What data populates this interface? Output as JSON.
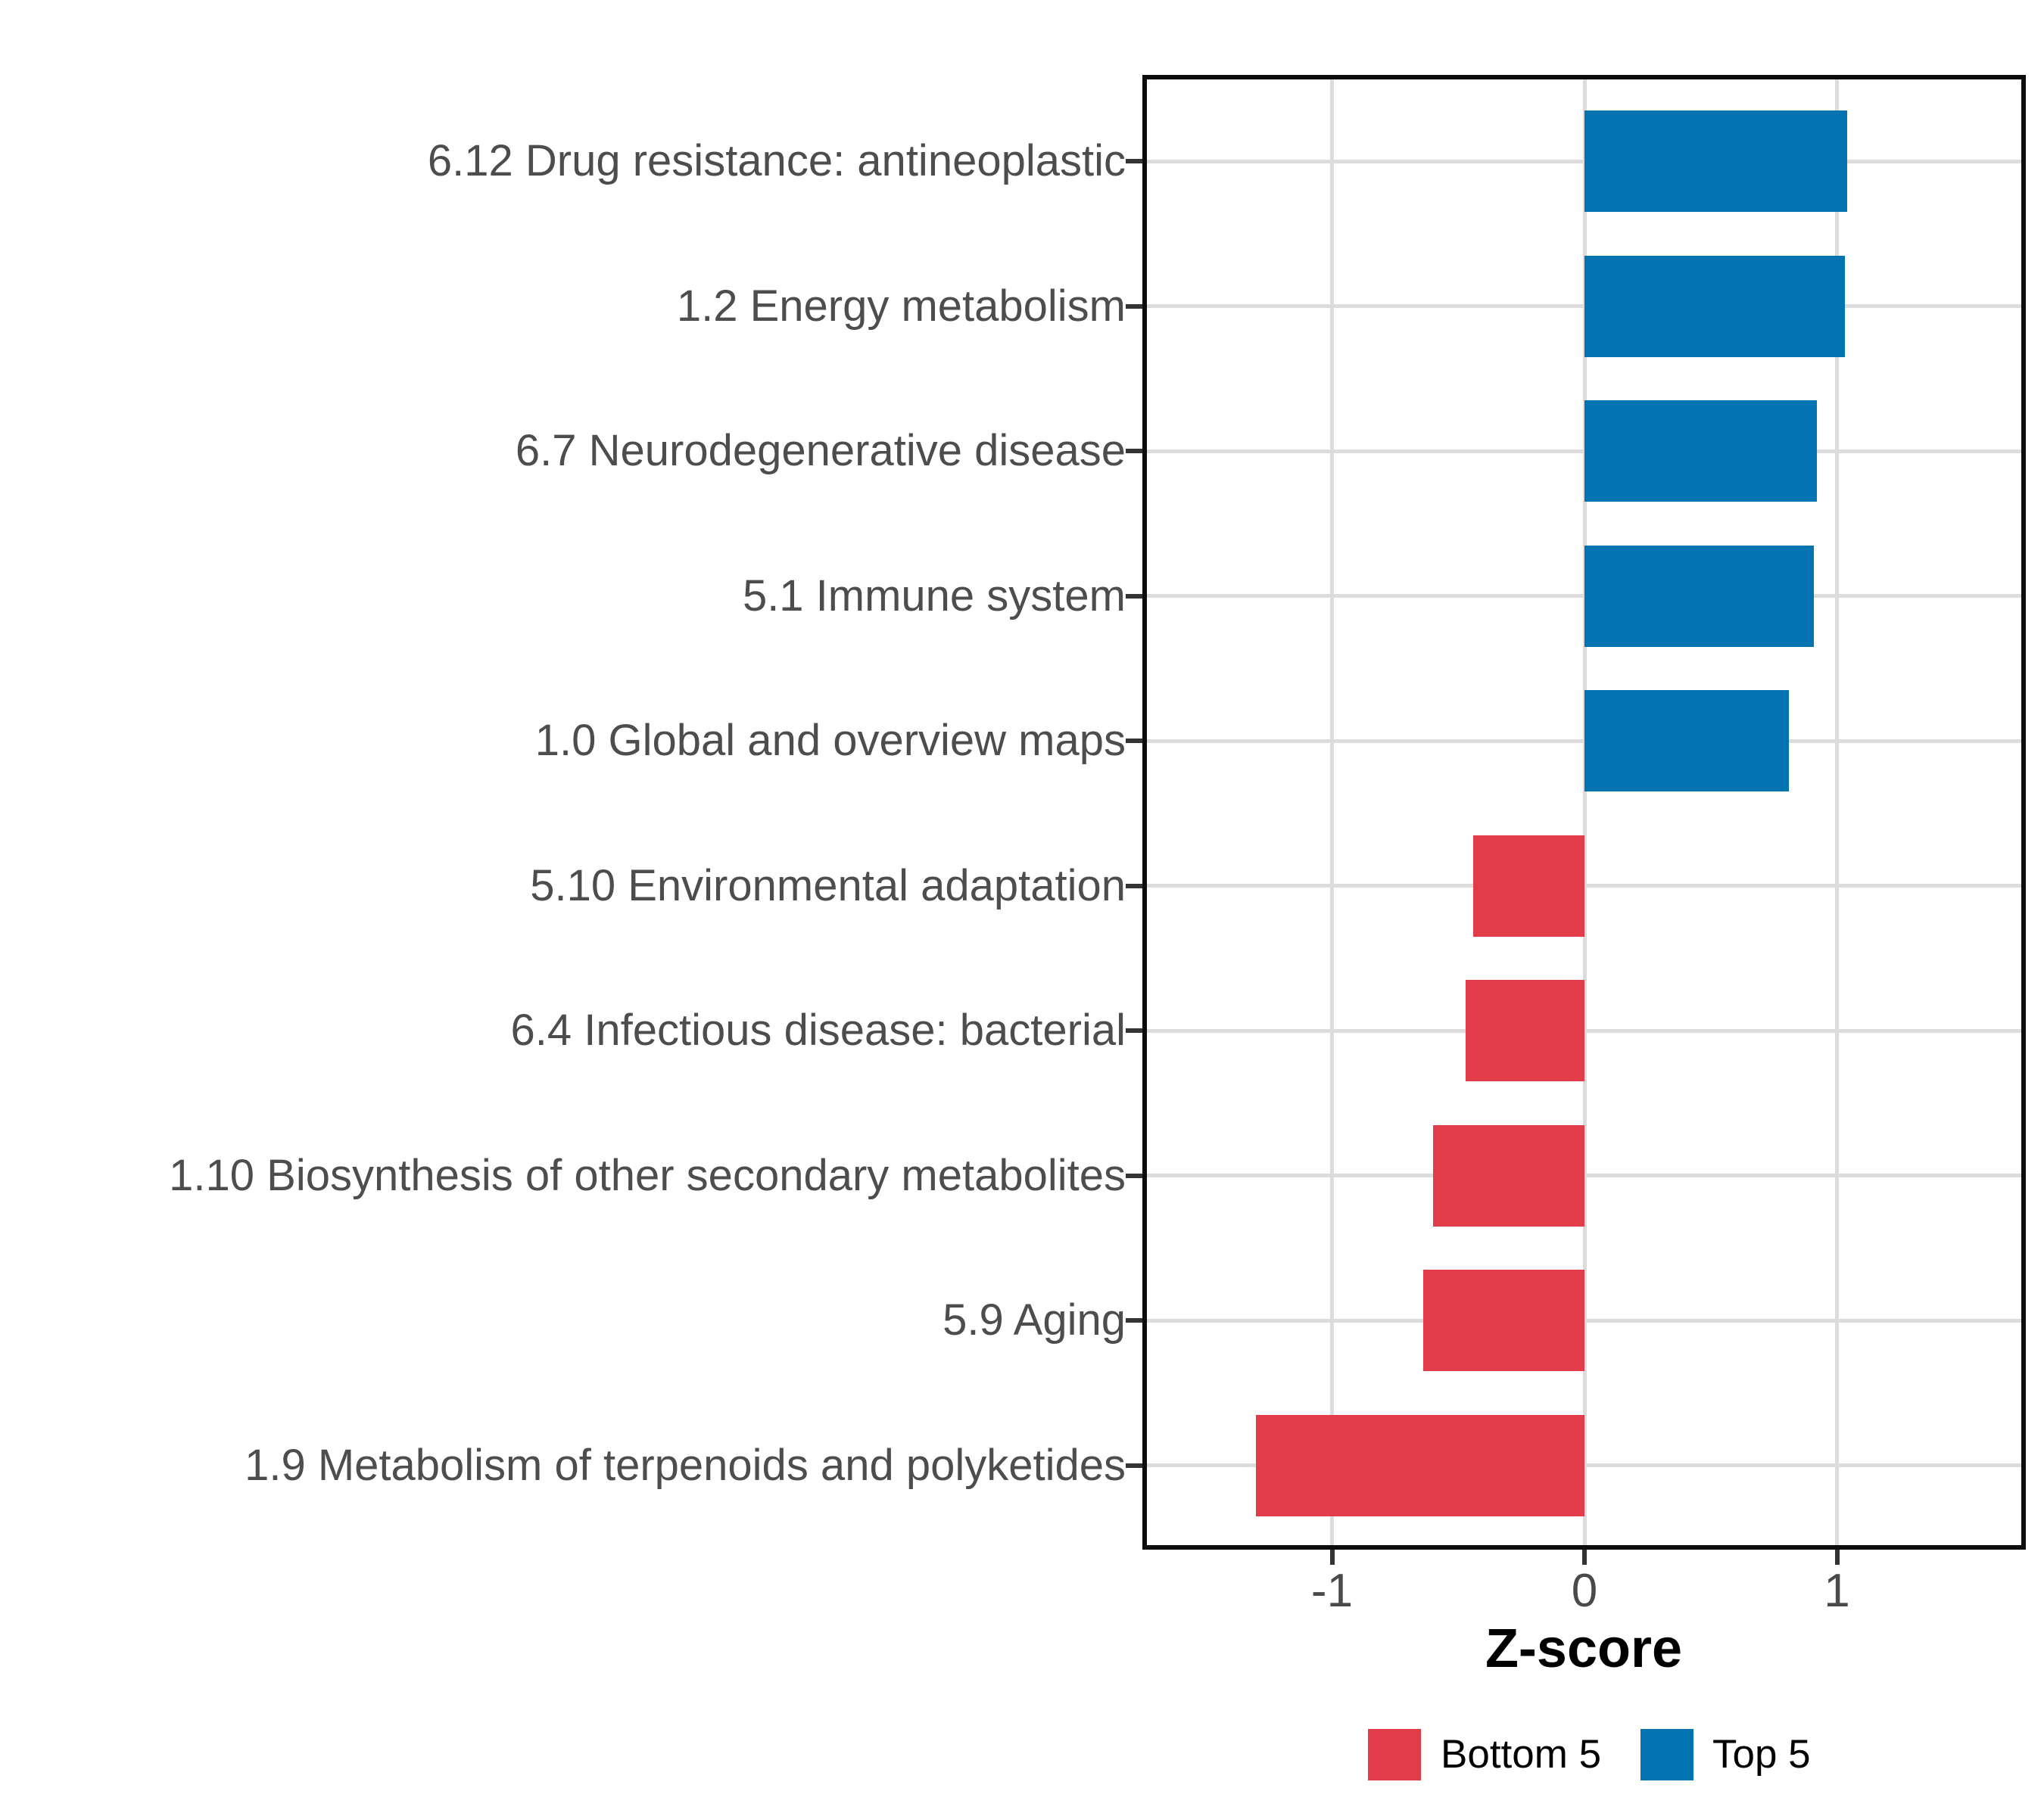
{
  "chart_data": {
    "type": "bar",
    "orientation": "horizontal",
    "title": "",
    "xlabel": "Z-score",
    "ylabel": "",
    "xlim": [
      -1.75,
      1.75
    ],
    "xticks": [
      {
        "value": -1,
        "label": "-1"
      },
      {
        "value": 0,
        "label": "0"
      },
      {
        "value": 1,
        "label": "1"
      }
    ],
    "grid": "major-only",
    "legend_position": "bottom",
    "bars": [
      {
        "label": "6.12 Drug resistance: antineoplastic",
        "value": 1.04,
        "group": "Top 5"
      },
      {
        "label": "1.2 Energy metabolism",
        "value": 1.03,
        "group": "Top 5"
      },
      {
        "label": "6.7 Neurodegenerative disease",
        "value": 0.92,
        "group": "Top 5"
      },
      {
        "label": "5.1 Immune system",
        "value": 0.91,
        "group": "Top 5"
      },
      {
        "label": "1.0 Global and overview maps",
        "value": 0.81,
        "group": "Top 5"
      },
      {
        "label": "5.10 Environmental adaptation",
        "value": -0.44,
        "group": "Bottom 5"
      },
      {
        "label": "6.4 Infectious disease: bacterial",
        "value": -0.47,
        "group": "Bottom 5"
      },
      {
        "label": "1.10 Biosynthesis of other secondary metabolites",
        "value": -0.6,
        "group": "Bottom 5"
      },
      {
        "label": "5.9 Aging",
        "value": -0.64,
        "group": "Bottom 5"
      },
      {
        "label": "1.9 Metabolism of terpenoids and polyketides",
        "value": -1.3,
        "group": "Bottom 5"
      }
    ],
    "legend": [
      {
        "label": "Bottom 5",
        "color": "#e23b49"
      },
      {
        "label": "Top 5",
        "color": "#0473b2"
      }
    ],
    "colors": {
      "Bottom 5": "#e23b49",
      "Top 5": "#0473b2",
      "gridline": "#dcdcdc",
      "panel_border": "#0d0d0d",
      "axis_text": "#4d4d4d",
      "tick_mark": "#343434"
    }
  }
}
